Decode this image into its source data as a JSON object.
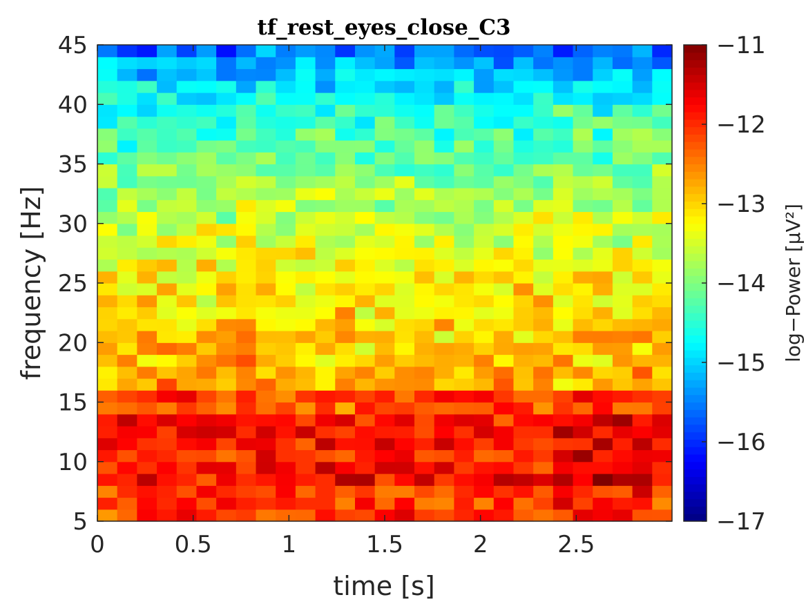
{
  "chart_data": {
    "type": "heatmap",
    "title": "tf_rest_eyes_close_C3",
    "xlabel": "time [s]",
    "ylabel": "frequency [Hz]",
    "colorbar_label": "log−Power [μV²]",
    "colormap": "jet",
    "xlim": [
      0,
      3
    ],
    "ylim": [
      5,
      45
    ],
    "clim": [
      -17,
      -11
    ],
    "x_ticks": [
      0,
      0.5,
      1,
      1.5,
      2,
      2.5
    ],
    "x_tick_labels": [
      "0",
      "0.5",
      "1",
      "1.5",
      "2",
      "2.5"
    ],
    "y_ticks": [
      5,
      10,
      15,
      20,
      25,
      30,
      35,
      40,
      45
    ],
    "y_tick_labels": [
      "5",
      "10",
      "15",
      "20",
      "25",
      "30",
      "35",
      "40",
      "45"
    ],
    "colorbar_ticks": [
      -17,
      -16,
      -15,
      -14,
      -13,
      -12,
      -11
    ],
    "colorbar_tick_labels": [
      "−17",
      "−16",
      "−15",
      "−14",
      "−13",
      "−12",
      "−11"
    ],
    "n_time_bins": 29,
    "n_freq_bins": 40,
    "grid": false
  },
  "colors": {
    "axis": "#262626",
    "background": "#ffffff"
  }
}
